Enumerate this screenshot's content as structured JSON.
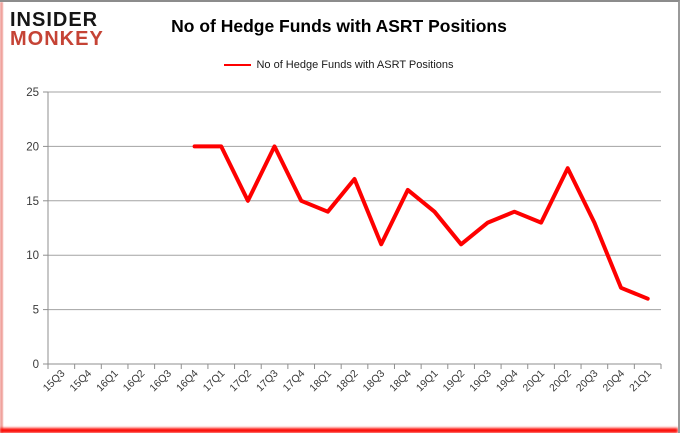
{
  "logo": {
    "line1": "INSIDER",
    "line2": "MONKEY"
  },
  "title": "No of Hedge Funds with ASRT Positions",
  "legend": {
    "label": "No of Hedge Funds with ASRT Positions"
  },
  "colors": {
    "line": "#fe0000",
    "grid": "#a3a3a3",
    "axis": "#8f8f8f",
    "tick_label": "#3a3a3a",
    "logo_black": "#151515",
    "logo_red": "#c54335",
    "accent_left": "#f0a39d",
    "accent_bottom": "#fb0a03"
  },
  "chart_data": {
    "type": "line",
    "categories": [
      "15Q3",
      "15Q4",
      "16Q1",
      "16Q2",
      "16Q3",
      "16Q4",
      "17Q1",
      "17Q2",
      "17Q3",
      "17Q4",
      "18Q1",
      "18Q2",
      "18Q3",
      "18Q4",
      "19Q1",
      "19Q2",
      "19Q3",
      "19Q4",
      "20Q1",
      "20Q2",
      "20Q3",
      "20Q4",
      "21Q1"
    ],
    "series": [
      {
        "name": "No of Hedge Funds with ASRT Positions",
        "values": [
          null,
          null,
          null,
          null,
          null,
          20,
          20,
          15,
          20,
          15,
          14,
          17,
          11,
          16,
          14,
          11,
          13,
          14,
          13,
          18,
          13,
          7,
          6
        ]
      }
    ],
    "title": "No of Hedge Funds with ASRT Positions",
    "xlabel": "",
    "ylabel": "",
    "ylim": [
      0,
      25
    ],
    "yticks": [
      0,
      5,
      10,
      15,
      20,
      25
    ],
    "grid": true,
    "legend_position": "top-center"
  }
}
